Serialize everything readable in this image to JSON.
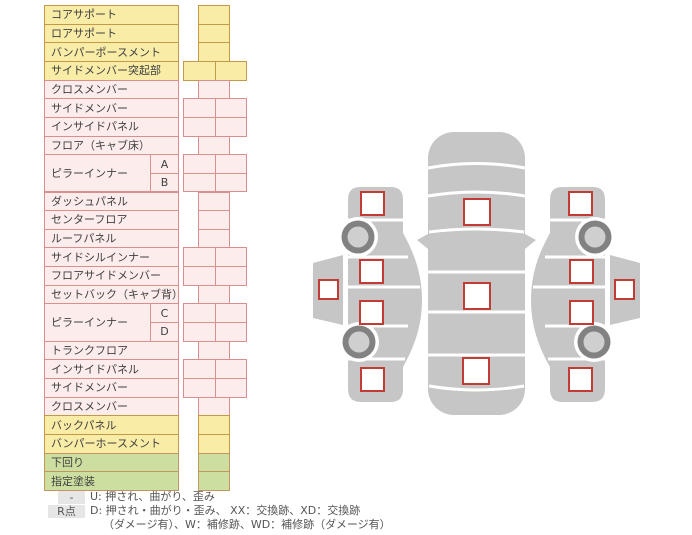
{
  "colors": {
    "yellow_fill": "#f8eca7",
    "yellow_border": "#c49a48",
    "pink_fill": "#fdecec",
    "pink_border": "#d88f8f",
    "green_fill": "#cddfa0",
    "green_border": "#bf975f",
    "car_body_gray": "#c6c6c6",
    "wheel_ring_gray": "#828282",
    "wheel_hub_gray": "#cfcfcf",
    "checkbox_border_red": "#c33b35",
    "legend_chip_gray": "#e6e6e6"
  },
  "parts_table": {
    "rows": [
      {
        "label": "コアサポート",
        "sub": null,
        "color": "yellow",
        "cells": 1
      },
      {
        "label": "ロアサポート",
        "sub": null,
        "color": "yellow",
        "cells": 1
      },
      {
        "label": "バンパーポースメント",
        "sub": null,
        "color": "yellow",
        "cells": 1
      },
      {
        "label": "サイドメンバー突起部",
        "sub": null,
        "color": "yellow",
        "cells": 2
      },
      {
        "label": "クロスメンバー",
        "sub": null,
        "color": "pink",
        "cells": 1
      },
      {
        "label": "サイドメンバー",
        "sub": null,
        "color": "pink",
        "cells": 2
      },
      {
        "label": "インサイドパネル",
        "sub": null,
        "color": "pink",
        "cells": 2
      },
      {
        "label": "フロア（キャブ床）",
        "sub": null,
        "color": "pink",
        "cells": 1
      },
      {
        "label": "ピラーインナー",
        "sub": "A",
        "span": 2,
        "color": "pink",
        "cells": 2
      },
      {
        "label": null,
        "sub": "B",
        "color": "pink",
        "cells": 2
      },
      {
        "label": "ダッシュパネル",
        "sub": null,
        "color": "pink",
        "cells": 1
      },
      {
        "label": "センターフロア",
        "sub": null,
        "color": "pink",
        "cells": 1
      },
      {
        "label": "ルーフパネル",
        "sub": null,
        "color": "pink",
        "cells": 1
      },
      {
        "label": "サイドシルインナー",
        "sub": null,
        "color": "pink",
        "cells": 2
      },
      {
        "label": "フロアサイドメンバー",
        "sub": null,
        "color": "pink",
        "cells": 2
      },
      {
        "label": "セットバック（キャブ背）",
        "sub": null,
        "color": "pink",
        "cells": 1
      },
      {
        "label": "ピラーインナー",
        "sub": "C",
        "span": 2,
        "color": "pink",
        "cells": 2
      },
      {
        "label": null,
        "sub": "D",
        "color": "pink",
        "cells": 2
      },
      {
        "label": "トランクフロア",
        "sub": null,
        "color": "pink",
        "cells": 1
      },
      {
        "label": "インサイドパネル",
        "sub": null,
        "color": "pink",
        "cells": 2
      },
      {
        "label": "サイドメンバー",
        "sub": null,
        "color": "pink",
        "cells": 2
      },
      {
        "label": "クロスメンバー",
        "sub": null,
        "color": "pink",
        "cells": 1
      },
      {
        "label": "バックパネル",
        "sub": null,
        "color": "yellow",
        "cells": 1
      },
      {
        "label": "バンパーホースメント",
        "sub": null,
        "color": "yellow",
        "cells": 1
      },
      {
        "label": "下回り",
        "sub": null,
        "color": "green",
        "cells": 1
      },
      {
        "label": "指定塗装",
        "sub": null,
        "color": "green",
        "cells": 1
      }
    ]
  },
  "legend": {
    "rows": [
      {
        "chip": "-",
        "text": "U: 押され、曲がり、歪み"
      },
      {
        "chip": "R点",
        "text": "D: 押され・曲がり・歪み、 XX：交換跡、XD：交換跡"
      },
      {
        "chip": "",
        "text": "（ダメージ有）、W：補修跡、WD：補修跡（ダメージ有）"
      }
    ]
  },
  "diagram": {
    "views": [
      "left-side-view",
      "top-view",
      "right-side-view"
    ],
    "checkboxes": [
      "checkbox-left-front-fender",
      "checkbox-left-front-door",
      "checkbox-left-rocker",
      "checkbox-left-rear-door",
      "checkbox-left-rear-quarter",
      "checkbox-top-cowl",
      "checkbox-top-roof",
      "checkbox-top-trunk",
      "checkbox-right-front-fender",
      "checkbox-right-front-door",
      "checkbox-right-rocker",
      "checkbox-right-rear-door",
      "checkbox-right-rear-quarter"
    ]
  }
}
